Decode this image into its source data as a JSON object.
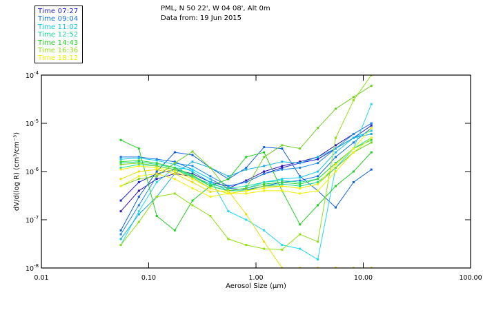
{
  "header": {
    "location": "PML, N 50 22', W 04 08', Alt 0m",
    "date": "Data from: 19 Jun 2015"
  },
  "legend": [
    {
      "label": "Time 07:27",
      "color": "#2020d0"
    },
    {
      "label": "Time 09:04",
      "color": "#1070e0"
    },
    {
      "label": "Time 11:02",
      "color": "#10c8e8"
    },
    {
      "label": "Time 12:52",
      "color": "#10d890"
    },
    {
      "label": "Time 14:43",
      "color": "#20d020"
    },
    {
      "label": "Time 16:36",
      "color": "#90e010"
    },
    {
      "label": "Time 18:12",
      "color": "#f0f000"
    }
  ],
  "chart_data": {
    "type": "line",
    "title": "PML, N 50 22', W 04 08', Alt 0m — Data from: 19 Jun 2015",
    "xlabel": "Aerosol Size (μm)",
    "ylabel": "dV/d(log R) (cm³/cm⁻³)",
    "xscale": "log",
    "yscale": "log",
    "xlim": [
      0.01,
      100.0
    ],
    "ylim": [
      1e-08,
      0.0001
    ],
    "xticks": [
      0.01,
      0.1,
      1.0,
      10.0,
      100.0
    ],
    "xtick_labels": [
      "0.01",
      "0.10",
      "1.00",
      "10.00",
      "100.00"
    ],
    "yticks": [
      1e-08,
      1e-07,
      1e-06,
      1e-05,
      0.0001
    ],
    "ytick_labels": [
      {
        "base": "10",
        "exp": "-8"
      },
      {
        "base": "10",
        "exp": "-7"
      },
      {
        "base": "10",
        "exp": "-6"
      },
      {
        "base": "10",
        "exp": "-5"
      },
      {
        "base": "10",
        "exp": "-4"
      }
    ],
    "legend_position": "top-left (outside plot)",
    "grid": false,
    "x": [
      0.055,
      0.081,
      0.119,
      0.175,
      0.256,
      0.376,
      0.552,
      0.81,
      1.19,
      1.75,
      2.57,
      3.77,
      5.53,
      8.12,
      11.9
    ],
    "series": [
      {
        "name": "Time 07:27",
        "color": "#2020d0",
        "values": [
          2.5e-07,
          6e-07,
          9e-07,
          1.1e-06,
          9e-07,
          6e-07,
          5e-07,
          6e-07,
          9e-07,
          1.2e-06,
          1.5e-06,
          1.8e-06,
          3e-06,
          5e-06,
          9e-06
        ]
      },
      {
        "name": "Time 07:27",
        "color": "#3010b0",
        "values": [
          1.5e-07,
          4e-07,
          7e-07,
          9e-07,
          8e-07,
          5.5e-07,
          4.5e-07,
          6.5e-07,
          1e-06,
          1.3e-06,
          1.6e-06,
          2e-06,
          3.5e-06,
          6e-06,
          1e-05
        ]
      },
      {
        "name": "Time 09:04",
        "color": "#1070e0",
        "values": [
          2e-06,
          2e-06,
          1.8e-06,
          1.6e-06,
          1.1e-06,
          7e-07,
          4.5e-07,
          4.2e-07,
          5e-07,
          6e-07,
          6.5e-07,
          8e-07,
          2e-06,
          4e-06,
          8e-06
        ]
      },
      {
        "name": "Time 09:04",
        "color": "#1060d8",
        "values": [
          6e-08,
          3e-07,
          1e-06,
          2.5e-06,
          2.2e-06,
          1.2e-06,
          7e-07,
          1.2e-06,
          3.2e-06,
          3e-06,
          8e-07,
          4e-07,
          1.8e-07,
          6e-07,
          1.1e-06
        ]
      },
      {
        "name": "Time 09:04",
        "color": "#1a88e8",
        "values": [
          5e-08,
          2e-07,
          8e-07,
          1.5e-06,
          1.3e-06,
          8e-07,
          5e-07,
          6e-07,
          9e-07,
          1.1e-06,
          1.2e-06,
          1.5e-06,
          3e-06,
          6e-06,
          1e-05
        ]
      },
      {
        "name": "Time 11:02",
        "color": "#10c8e8",
        "values": [
          1.8e-06,
          1.9e-06,
          1.7e-06,
          1.4e-06,
          1e-06,
          6e-07,
          4e-07,
          4.5e-07,
          6e-07,
          7e-07,
          7.5e-07,
          1e-06,
          2.5e-06,
          5e-06,
          7e-06
        ]
      },
      {
        "name": "Time 11:02",
        "color": "#20d8f0",
        "values": [
          3e-08,
          1.5e-07,
          6e-07,
          1.2e-06,
          1.1e-06,
          7e-07,
          1.5e-07,
          1e-07,
          6e-08,
          3e-08,
          2.5e-08,
          1.5e-08,
          1.2e-06,
          3e-06,
          2.5e-05
        ]
      },
      {
        "name": "Time 11:02",
        "color": "#18b0e0",
        "values": [
          4e-08,
          1.3e-07,
          3e-07,
          9e-07,
          1.6e-06,
          1.2e-06,
          8e-07,
          1.1e-06,
          1.3e-06,
          1.6e-06,
          1.5e-06,
          2e-06,
          3e-06,
          5e-06,
          6e-06
        ]
      },
      {
        "name": "Time 12:52",
        "color": "#10d890",
        "values": [
          1.5e-06,
          1.6e-06,
          1.4e-06,
          1.2e-06,
          8e-07,
          5e-07,
          4e-07,
          4e-07,
          5e-07,
          5.5e-07,
          5e-07,
          6e-07,
          1.2e-06,
          2.5e-06,
          4e-06
        ]
      },
      {
        "name": "Time 12:52",
        "color": "#20e0a0",
        "values": [
          1.2e-06,
          1.4e-06,
          1.3e-06,
          1.1e-06,
          8e-07,
          5.5e-07,
          4.5e-07,
          5e-07,
          6e-07,
          6.5e-07,
          6e-07,
          7e-07,
          1.5e-06,
          3e-06,
          5e-06
        ]
      },
      {
        "name": "Time 14:43",
        "color": "#20d020",
        "values": [
          4.5e-06,
          3e-06,
          1.2e-07,
          6e-08,
          2.5e-07,
          5e-07,
          7e-07,
          2e-06,
          2.5e-06,
          4e-07,
          8e-08,
          2e-07,
          5e-07,
          1e-06,
          2.5e-06
        ]
      },
      {
        "name": "Time 14:43",
        "color": "#30d830",
        "values": [
          1.6e-06,
          1.7e-06,
          1.5e-06,
          1.2e-06,
          8.5e-07,
          5e-07,
          4e-07,
          4.5e-07,
          5.5e-07,
          6e-07,
          5.5e-07,
          7e-07,
          1.5e-06,
          3e-06,
          4.5e-06
        ]
      },
      {
        "name": "Time 16:36",
        "color": "#90e010",
        "values": [
          3e-08,
          9e-08,
          3e-07,
          3.5e-07,
          2e-07,
          1.2e-07,
          4e-08,
          3e-08,
          2.5e-08,
          2.4e-08,
          5e-08,
          3.5e-08,
          5e-06,
          3e-05,
          0.0001
        ]
      },
      {
        "name": "Time 16:36",
        "color": "#80d820",
        "values": [
          1.4e-06,
          1.5e-06,
          1.3e-06,
          1.1e-06,
          7.5e-07,
          4.5e-07,
          3.5e-07,
          4e-07,
          5e-07,
          5e-07,
          4.5e-07,
          5.5e-07,
          1.2e-06,
          2.5e-06,
          4e-06
        ]
      },
      {
        "name": "Time 16:36",
        "color": "#70d020",
        "values": [
          5e-07,
          7e-07,
          8e-07,
          1.5e-06,
          2.6e-06,
          1.2e-06,
          4e-07,
          4.5e-07,
          2e-06,
          3.5e-06,
          3e-06,
          8e-06,
          2e-05,
          3.5e-05,
          6e-05
        ]
      },
      {
        "name": "Time 18:12",
        "color": "#f0f000",
        "values": [
          5e-07,
          8e-07,
          9e-07,
          7e-07,
          4.5e-07,
          3e-07,
          3.5e-07,
          3.5e-07,
          4e-07,
          4e-07,
          3.5e-07,
          4e-07,
          1e-06,
          2.5e-06,
          5e-06
        ]
      },
      {
        "name": "Time 18:12",
        "color": "#e8e000",
        "values": [
          7e-07,
          1e-06,
          1.1e-06,
          9e-07,
          6e-07,
          3.8e-07,
          4e-07,
          1.3e-07,
          3.5e-08,
          1e-08,
          1e-08,
          1e-08,
          1e-08,
          1e-08,
          1e-08
        ]
      },
      {
        "name": "Time 18:12",
        "color": "#f8f000",
        "values": [
          1.1e-06,
          1.3e-06,
          1.2e-06,
          1e-06,
          7e-07,
          4.5e-07,
          3.5e-07,
          4e-07,
          4.5e-07,
          5e-07,
          4.5e-07,
          5.5e-07,
          1.4e-06,
          3e-06,
          8e-06
        ]
      }
    ]
  }
}
